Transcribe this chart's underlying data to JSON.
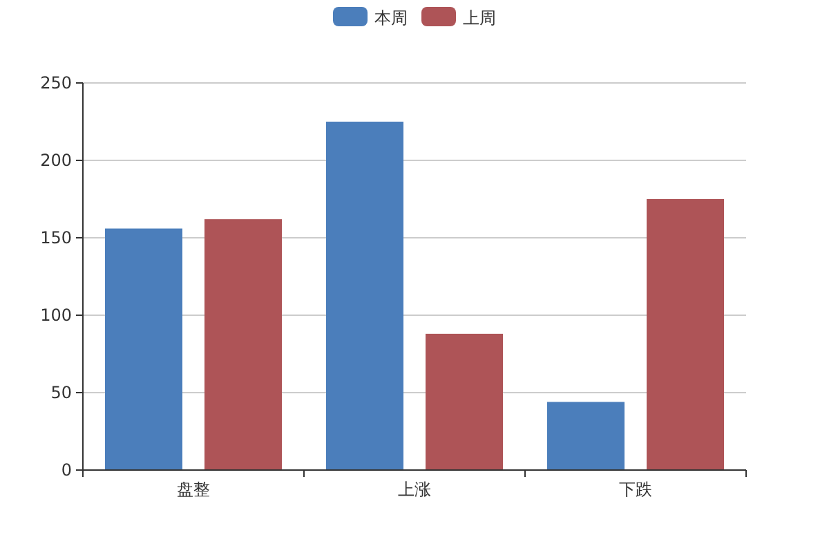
{
  "chart_data": {
    "type": "bar",
    "categories": [
      "盘整",
      "上涨",
      "下跌"
    ],
    "series": [
      {
        "name": "本周",
        "color": "#4b7ebb",
        "values": [
          156,
          225,
          44
        ]
      },
      {
        "name": "上周",
        "color": "#ae5457",
        "values": [
          162,
          88,
          175
        ]
      }
    ],
    "ylim": [
      0,
      250
    ],
    "yticks": [
      0,
      50,
      100,
      150,
      200,
      250
    ],
    "grid": "y",
    "legend": "top"
  }
}
